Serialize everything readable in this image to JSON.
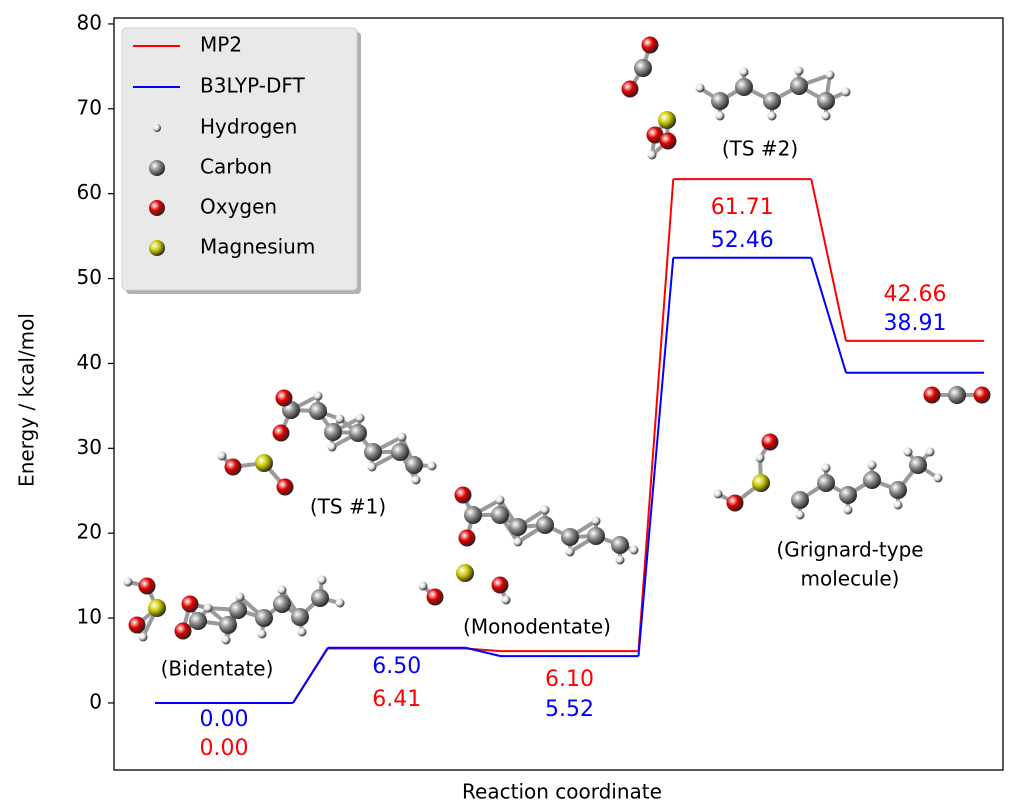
{
  "chart_data": {
    "type": "energy_profile",
    "ylabel": "Energy / kcal/mol",
    "xlabel": "Reaction coordinate",
    "states": [
      [
        "(Bidentate)"
      ],
      [
        "(TS #1)"
      ],
      [
        "(Monodentate)"
      ],
      [
        "(TS #2)"
      ],
      [
        "(Grignard-type",
        "molecule)"
      ]
    ],
    "series": [
      {
        "name": "MP2",
        "color": "#ff0000",
        "values": [
          0,
          6.41,
          6.1,
          61.71,
          42.66
        ],
        "value_labels": [
          "0.00",
          "6.41",
          "6.10",
          "61.71",
          "42.66"
        ]
      },
      {
        "name": "B3LYP-DFT",
        "color": "#0000ff",
        "values": [
          0,
          6.5,
          5.52,
          52.46,
          38.91
        ],
        "value_labels": [
          "0.00",
          "6.50",
          "5.52",
          "52.46",
          "38.91"
        ]
      }
    ],
    "atoms": [
      {
        "name": "Hydrogen",
        "color": "#e6e6e6"
      },
      {
        "name": "Carbon",
        "color": "#8a8a8a"
      },
      {
        "name": "Oxygen",
        "color": "#e00000"
      },
      {
        "name": "Magnesium",
        "color": "#c8c800"
      }
    ],
    "ylim": [
      -7.9,
      80.7
    ],
    "yticks": [
      0,
      10,
      20,
      30,
      40,
      50,
      60,
      70,
      80
    ],
    "legend": "upper left"
  }
}
